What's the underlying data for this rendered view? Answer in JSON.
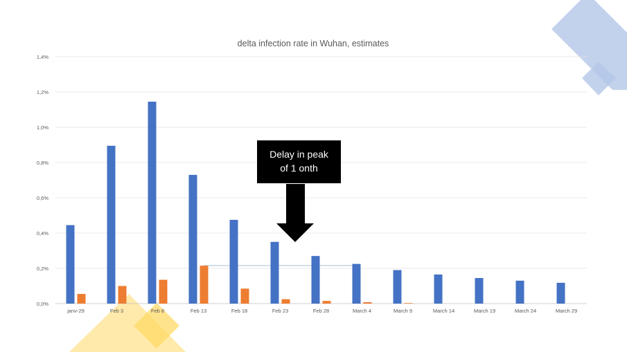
{
  "chart_data": {
    "type": "bar",
    "title": "delta infection rate in Wuhan, estimates",
    "xlabel": "",
    "ylabel": "",
    "ylim": [
      0,
      0.014
    ],
    "yticks": [
      "0,0%",
      "0,2%",
      "0,4%",
      "0,6%",
      "0,8%",
      "1,0%",
      "1,2%",
      "1,4%"
    ],
    "grid": true,
    "legend": "none",
    "categories": [
      "janv-29",
      "Feb 3",
      "Feb 8",
      "Feb 13",
      "Feb 18",
      "Feb 23",
      "Feb 28",
      "March 4",
      "March 9",
      "March 14",
      "March 19",
      "March 24",
      "March 29"
    ],
    "series": [
      {
        "color": "#4472C4",
        "values": [
          0.00445,
          0.00895,
          0.01145,
          0.0073,
          0.00475,
          0.0035,
          0.0027,
          0.00225,
          0.0019,
          0.00165,
          0.00145,
          0.0013,
          0.00118
        ]
      },
      {
        "color": "#ED7D31",
        "values": [
          0.00055,
          0.001,
          0.00135,
          0.00215,
          0.00085,
          0.00025,
          0.00015,
          8e-05,
          3e-05,
          0,
          0,
          0,
          0
        ]
      }
    ],
    "annotation": {
      "lines": [
        "Delay in peak",
        "of 1 onth"
      ]
    }
  },
  "colors": {
    "decor_blue": "#B4C7E7",
    "decor_yellow": "#FFD966",
    "callout": "#000000"
  }
}
